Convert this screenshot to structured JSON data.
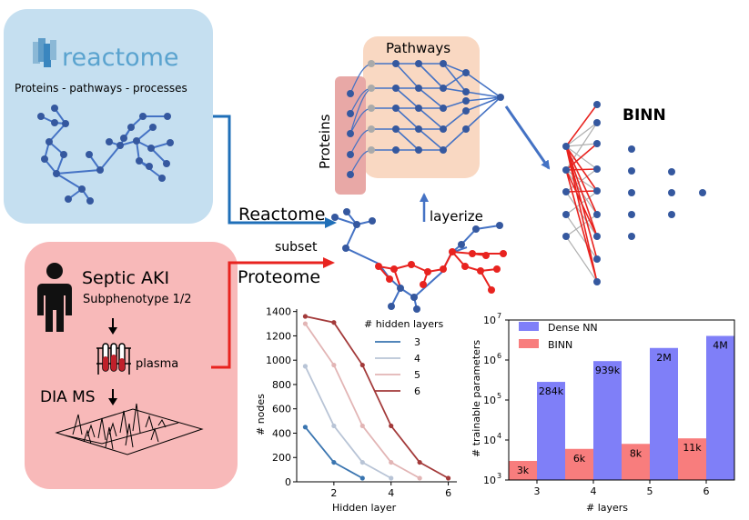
{
  "reactome": {
    "brand": "reactome",
    "caption": "Proteins - pathways - processes"
  },
  "patient": {
    "title": "Septic AKI",
    "subtitle": "Subphenotype  1/2",
    "sample": "plasma",
    "method": "DIA MS"
  },
  "flow": {
    "reactome_label": "Reactome",
    "subset_label": "subset",
    "proteome_label": "Proteome",
    "layerize_label": "layerize"
  },
  "pathway_box": {
    "pathways_label": "Pathways",
    "proteins_label": "Proteins"
  },
  "binn_label": "BINN",
  "colors": {
    "blue_panel": "#c5dff0",
    "red_panel": "#f8b9b9",
    "node_blue": "#35589f",
    "edge_blue": "#4472c4",
    "edge_red": "#e8231f",
    "arrow_blue": "#1f6fb8",
    "arrow_red": "#e8231f",
    "dense_bar": "#7f7ff8",
    "binn_bar": "#f87d7d"
  },
  "chart_data": [
    {
      "type": "line",
      "xlabel": "Hidden layer",
      "ylabel": "# nodes",
      "xlim": [
        0.7,
        6.3
      ],
      "ylim": [
        0,
        1420
      ],
      "xticks": [
        2,
        4,
        6
      ],
      "yticks": [
        0,
        200,
        400,
        600,
        800,
        1000,
        1200,
        1400
      ],
      "legend_title": "# hidden layers",
      "legend_position": "top-right",
      "grid": false,
      "series": [
        {
          "name": "3",
          "color": "#3a75b0",
          "x": [
            1,
            2,
            3
          ],
          "values": [
            450,
            160,
            30
          ]
        },
        {
          "name": "4",
          "color": "#b8c4d6",
          "x": [
            1,
            2,
            3,
            4
          ],
          "values": [
            950,
            460,
            160,
            30
          ]
        },
        {
          "name": "5",
          "color": "#e2b5b5",
          "x": [
            1,
            2,
            3,
            4,
            5
          ],
          "values": [
            1300,
            960,
            460,
            160,
            30
          ]
        },
        {
          "name": "6",
          "color": "#a33a3a",
          "x": [
            1,
            2,
            3,
            4,
            5,
            6
          ],
          "values": [
            1360,
            1310,
            960,
            460,
            160,
            30
          ]
        }
      ]
    },
    {
      "type": "bar",
      "scale": "log",
      "xlabel": "# layers",
      "ylabel": "# trainable parameters",
      "categories": [
        "3",
        "4",
        "5",
        "6"
      ],
      "ylim": [
        1000,
        10000000
      ],
      "ytick_labels": [
        "10^3",
        "10^4",
        "10^5",
        "10^6",
        "10^7"
      ],
      "legend_position": "top-left",
      "grid": false,
      "series": [
        {
          "name": "Dense NN",
          "values": [
            284000,
            939000,
            2000000,
            4000000
          ],
          "labels": [
            "284k",
            "939k",
            "2M",
            "4M"
          ]
        },
        {
          "name": "BINN",
          "values": [
            3000,
            6000,
            8000,
            11000
          ],
          "labels": [
            "3k",
            "6k",
            "8k",
            "11k"
          ]
        }
      ]
    }
  ]
}
